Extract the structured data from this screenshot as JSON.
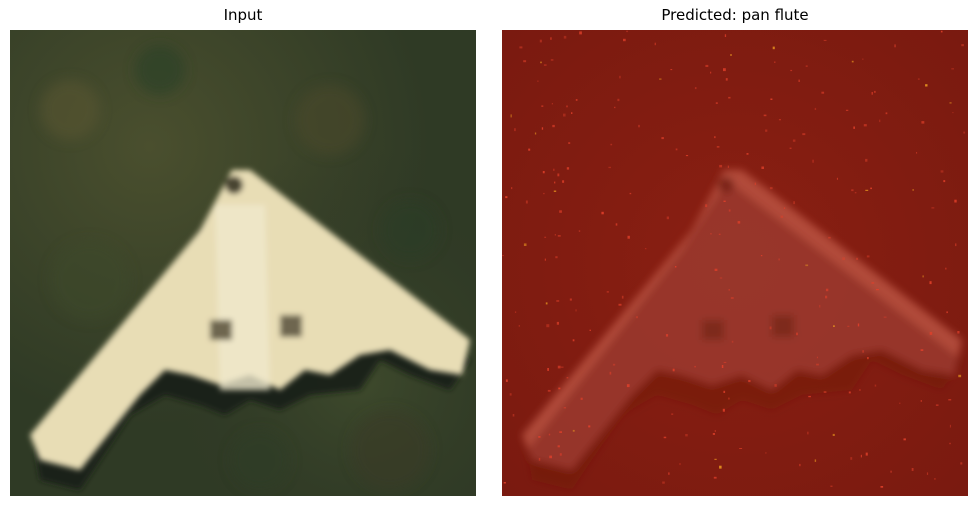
{
  "panels": [
    {
      "title": "Input",
      "image": "stealth-bomber-aircraft-on-grass"
    },
    {
      "title": "Predicted: pan flute",
      "image": "red-saliency-overlay-of-aircraft"
    }
  ]
}
